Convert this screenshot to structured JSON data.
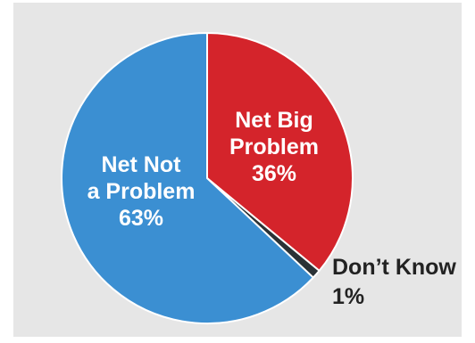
{
  "chart_data": {
    "type": "pie",
    "title": "",
    "slices": [
      {
        "name_lines": [
          "Net Big",
          "Problem"
        ],
        "value": 36,
        "value_label": "36%",
        "color": "#d4242b",
        "label_color": "#ffffff"
      },
      {
        "name_lines": [
          "Don’t Know"
        ],
        "value": 1,
        "value_label": "1%",
        "color": "#2b3236",
        "label_color": "#222222"
      },
      {
        "name_lines": [
          "Net Not",
          "a Problem"
        ],
        "value": 63,
        "value_label": "63%",
        "color": "#3b8fd2",
        "label_color": "#ffffff"
      }
    ],
    "start_angle_deg": 0,
    "direction": "clockwise",
    "legend": "none",
    "border_color": "#ffffff",
    "background_color": "#e6e6e6"
  }
}
